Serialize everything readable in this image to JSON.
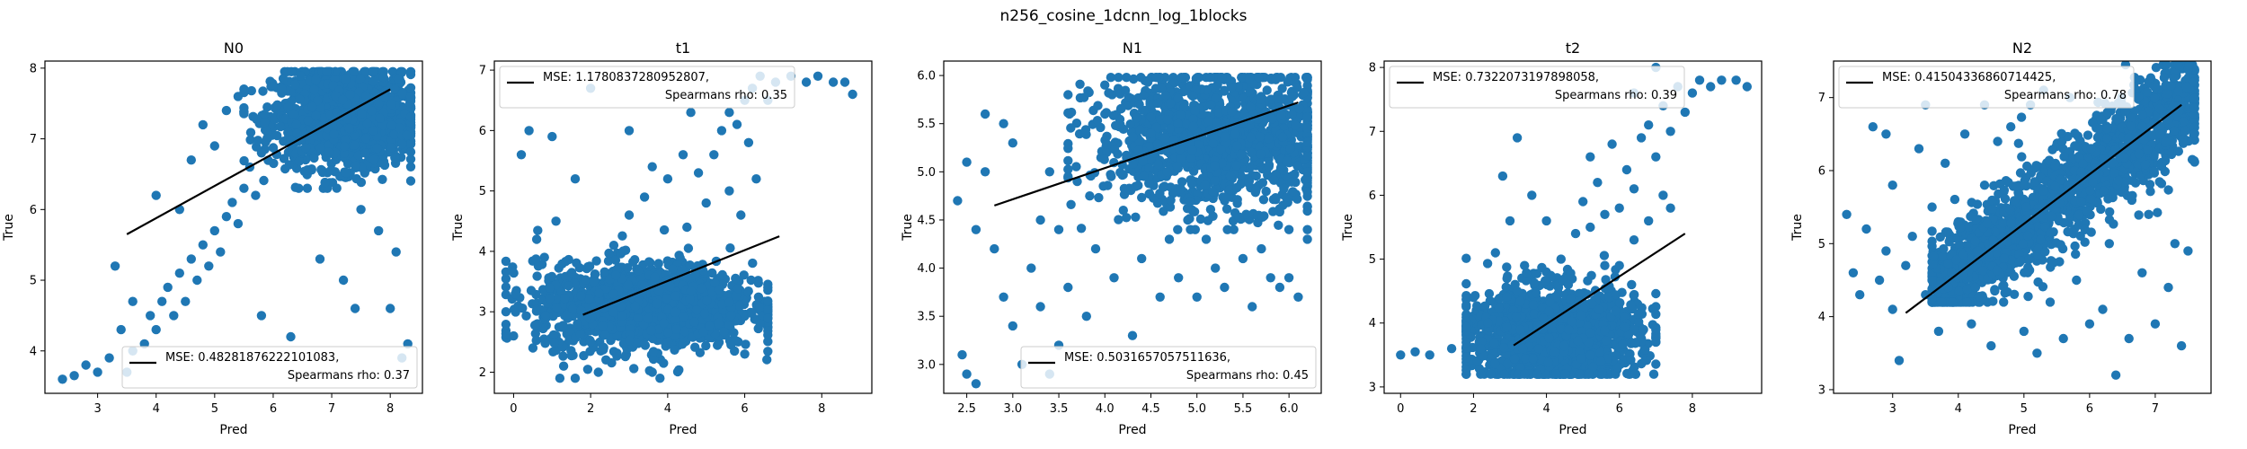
{
  "figure_title": "n256_cosine_1dcnn_log_1blocks",
  "accent_color": "#1f77b4",
  "fit_line_color": "#000000",
  "chart_data": [
    {
      "type": "scatter",
      "title": "N0",
      "xlabel": "Pred",
      "ylabel": "True",
      "xlim": [
        2.1,
        8.55
      ],
      "ylim": [
        3.4,
        8.1
      ],
      "xticks": [
        3,
        4,
        5,
        6,
        7,
        8
      ],
      "yticks": [
        4,
        5,
        6,
        7,
        8
      ],
      "legend": {
        "line1": "MSE: 0.48281876222101083,",
        "line2": "Spearmans rho: 0.37",
        "loc": "lower-right"
      },
      "fit_line": [
        [
          3.5,
          5.65
        ],
        [
          8.0,
          7.7
        ]
      ],
      "points": [
        [
          2.4,
          3.6
        ],
        [
          2.6,
          3.65
        ],
        [
          2.8,
          3.8
        ],
        [
          3.0,
          3.7
        ],
        [
          3.2,
          3.9
        ],
        [
          3.4,
          4.3
        ],
        [
          3.5,
          3.7
        ],
        [
          3.6,
          4.0
        ],
        [
          3.8,
          4.1
        ],
        [
          3.9,
          4.5
        ],
        [
          4.0,
          4.3
        ],
        [
          4.1,
          4.7
        ],
        [
          4.2,
          4.9
        ],
        [
          4.3,
          4.5
        ],
        [
          4.4,
          5.1
        ],
        [
          4.5,
          4.7
        ],
        [
          4.6,
          5.3
        ],
        [
          4.7,
          5.0
        ],
        [
          4.8,
          5.5
        ],
        [
          4.9,
          5.2
        ],
        [
          5.0,
          5.7
        ],
        [
          5.1,
          5.4
        ],
        [
          5.2,
          5.9
        ],
        [
          5.3,
          6.1
        ],
        [
          5.4,
          5.8
        ],
        [
          5.5,
          6.3
        ],
        [
          5.6,
          6.6
        ],
        [
          5.7,
          6.2
        ],
        [
          5.8,
          6.8
        ],
        [
          5.9,
          7.0
        ],
        [
          3.3,
          5.2
        ],
        [
          4.0,
          6.2
        ],
        [
          4.6,
          6.7
        ],
        [
          4.8,
          7.2
        ],
        [
          5.2,
          7.4
        ],
        [
          5.4,
          7.6
        ],
        [
          5.0,
          6.9
        ],
        [
          4.4,
          6.0
        ],
        [
          3.6,
          4.7
        ],
        [
          5.8,
          4.5
        ],
        [
          6.3,
          4.2
        ],
        [
          7.2,
          5.0
        ],
        [
          7.4,
          4.6
        ],
        [
          8.0,
          4.6
        ],
        [
          8.2,
          3.9
        ],
        [
          8.3,
          4.1
        ],
        [
          8.1,
          5.4
        ],
        [
          7.8,
          5.7
        ],
        [
          7.5,
          6.0
        ],
        [
          6.8,
          5.3
        ]
      ],
      "cluster": {
        "cx": 7.2,
        "cy": 7.3,
        "sx": 0.6,
        "sy": 0.35,
        "n": 1400,
        "xmin": 5.5,
        "xmax": 8.35,
        "ymin": 6.3,
        "ymax": 7.95
      }
    },
    {
      "type": "scatter",
      "title": "t1",
      "xlabel": "Pred",
      "ylabel": "True",
      "xlim": [
        -0.5,
        9.3
      ],
      "ylim": [
        1.65,
        7.15
      ],
      "xticks": [
        0,
        2,
        4,
        6,
        8
      ],
      "yticks": [
        2,
        3,
        4,
        5,
        6,
        7
      ],
      "legend": {
        "line1": "MSE: 1.1780837280952807,",
        "line2": "Spearmans rho: 0.35",
        "loc": "upper-left"
      },
      "fit_line": [
        [
          1.8,
          2.95
        ],
        [
          6.9,
          4.25
        ]
      ],
      "points": [
        [
          -0.2,
          3.0
        ],
        [
          0.0,
          2.6
        ],
        [
          0.2,
          5.6
        ],
        [
          0.4,
          6.0
        ],
        [
          0.6,
          4.2
        ],
        [
          0.5,
          2.4
        ],
        [
          1.0,
          5.9
        ],
        [
          1.1,
          4.5
        ],
        [
          1.3,
          2.1
        ],
        [
          1.6,
          1.9
        ],
        [
          2.0,
          2.5
        ],
        [
          2.2,
          2.0
        ],
        [
          2.6,
          4.1
        ],
        [
          3.0,
          4.6
        ],
        [
          3.4,
          4.9
        ],
        [
          3.6,
          5.4
        ],
        [
          4.0,
          5.2
        ],
        [
          4.4,
          5.6
        ],
        [
          4.8,
          5.3
        ],
        [
          5.2,
          5.6
        ],
        [
          5.4,
          6.0
        ],
        [
          5.6,
          6.3
        ],
        [
          5.8,
          6.1
        ],
        [
          6.0,
          6.5
        ],
        [
          6.2,
          6.7
        ],
        [
          6.4,
          6.9
        ],
        [
          6.6,
          6.5
        ],
        [
          6.8,
          6.8
        ],
        [
          7.2,
          6.9
        ],
        [
          7.6,
          6.8
        ],
        [
          7.9,
          6.9
        ],
        [
          8.3,
          6.8
        ],
        [
          8.6,
          6.8
        ],
        [
          8.8,
          6.6
        ],
        [
          5.0,
          4.8
        ],
        [
          5.6,
          5.0
        ],
        [
          6.1,
          5.8
        ],
        [
          4.5,
          4.4
        ],
        [
          6.0,
          2.3
        ],
        [
          6.4,
          2.8
        ],
        [
          3.0,
          6.0
        ],
        [
          3.6,
          2.0
        ],
        [
          2.0,
          6.7
        ],
        [
          1.6,
          5.2
        ],
        [
          4.6,
          6.3
        ],
        [
          5.9,
          4.6
        ],
        [
          6.3,
          5.2
        ],
        [
          3.8,
          1.9
        ],
        [
          1.2,
          1.9
        ],
        [
          0.8,
          3.9
        ]
      ],
      "cluster": {
        "cx": 3.4,
        "cy": 3.1,
        "sx": 1.4,
        "sy": 0.35,
        "n": 1500,
        "xmin": -0.2,
        "xmax": 6.6,
        "ymin": 2.0,
        "ymax": 4.5
      }
    },
    {
      "type": "scatter",
      "title": "N1",
      "xlabel": "Pred",
      "ylabel": "True",
      "xlim": [
        2.25,
        6.35
      ],
      "ylim": [
        2.7,
        6.15
      ],
      "xticks": [
        2.5,
        3.0,
        3.5,
        4.0,
        4.5,
        5.0,
        5.5,
        6.0
      ],
      "yticks": [
        3.0,
        3.5,
        4.0,
        4.5,
        5.0,
        5.5,
        6.0
      ],
      "legend": {
        "line1": "MSE: 0.5031657057511636,",
        "line2": "Spearmans rho: 0.45",
        "loc": "lower-right"
      },
      "fit_line": [
        [
          2.8,
          4.65
        ],
        [
          6.1,
          5.72
        ]
      ],
      "points": [
        [
          2.4,
          4.7
        ],
        [
          2.5,
          5.1
        ],
        [
          2.5,
          2.9
        ],
        [
          2.6,
          2.8
        ],
        [
          2.6,
          4.4
        ],
        [
          2.7,
          5.6
        ],
        [
          2.8,
          4.2
        ],
        [
          2.9,
          3.7
        ],
        [
          3.0,
          3.4
        ],
        [
          3.0,
          5.3
        ],
        [
          3.1,
          3.0
        ],
        [
          3.2,
          4.0
        ],
        [
          3.3,
          3.6
        ],
        [
          3.4,
          5.0
        ],
        [
          3.4,
          2.9
        ],
        [
          3.5,
          4.4
        ],
        [
          3.6,
          3.8
        ],
        [
          3.7,
          4.9
        ],
        [
          3.8,
          3.5
        ],
        [
          3.9,
          4.2
        ],
        [
          4.0,
          5.6
        ],
        [
          4.1,
          3.9
        ],
        [
          4.2,
          4.6
        ],
        [
          4.3,
          3.3
        ],
        [
          4.4,
          4.1
        ],
        [
          4.5,
          5.4
        ],
        [
          4.6,
          3.7
        ],
        [
          4.7,
          4.3
        ],
        [
          4.8,
          3.9
        ],
        [
          4.9,
          4.5
        ],
        [
          5.0,
          3.7
        ],
        [
          5.1,
          4.3
        ],
        [
          5.2,
          4.0
        ],
        [
          5.3,
          3.8
        ],
        [
          5.4,
          4.4
        ],
        [
          5.5,
          4.1
        ],
        [
          5.6,
          3.6
        ],
        [
          5.7,
          4.2
        ],
        [
          5.8,
          3.9
        ],
        [
          5.9,
          3.8
        ],
        [
          6.0,
          4.4
        ],
        [
          6.1,
          3.7
        ],
        [
          6.2,
          4.3
        ],
        [
          6.0,
          3.9
        ],
        [
          2.7,
          5.0
        ],
        [
          3.6,
          5.8
        ],
        [
          2.9,
          5.5
        ],
        [
          3.3,
          4.5
        ],
        [
          2.45,
          3.1
        ],
        [
          3.5,
          3.2
        ]
      ],
      "cluster": {
        "cx": 5.2,
        "cy": 5.35,
        "sx": 0.65,
        "sy": 0.35,
        "n": 1400,
        "xmin": 3.6,
        "xmax": 6.2,
        "ymin": 4.4,
        "ymax": 5.98
      }
    },
    {
      "type": "scatter",
      "title": "t2",
      "xlabel": "Pred",
      "ylabel": "True",
      "xlim": [
        -0.45,
        9.9
      ],
      "ylim": [
        2.9,
        8.1
      ],
      "xticks": [
        0,
        2,
        4,
        6,
        8
      ],
      "yticks": [
        3,
        4,
        5,
        6,
        7,
        8
      ],
      "legend": {
        "line1": "MSE: 0.7322073197898058,",
        "line2": "Spearmans rho: 0.39",
        "loc": "upper-left"
      },
      "fit_line": [
        [
          3.1,
          3.65
        ],
        [
          7.8,
          5.4
        ]
      ],
      "points": [
        [
          0.0,
          3.5
        ],
        [
          0.4,
          3.55
        ],
        [
          0.8,
          3.5
        ],
        [
          1.4,
          3.6
        ],
        [
          1.8,
          3.7
        ],
        [
          2.0,
          4.4
        ],
        [
          2.4,
          4.0
        ],
        [
          2.6,
          5.1
        ],
        [
          2.8,
          6.3
        ],
        [
          3.0,
          5.6
        ],
        [
          3.2,
          6.9
        ],
        [
          3.4,
          4.9
        ],
        [
          3.6,
          6.0
        ],
        [
          4.0,
          5.6
        ],
        [
          4.4,
          5.0
        ],
        [
          4.8,
          5.4
        ],
        [
          5.0,
          5.9
        ],
        [
          5.2,
          5.5
        ],
        [
          5.4,
          6.2
        ],
        [
          5.6,
          4.9
        ],
        [
          5.8,
          6.8
        ],
        [
          6.0,
          5.8
        ],
        [
          6.2,
          6.4
        ],
        [
          6.4,
          6.1
        ],
        [
          6.6,
          6.9
        ],
        [
          6.8,
          7.1
        ],
        [
          7.0,
          6.6
        ],
        [
          7.2,
          7.4
        ],
        [
          7.4,
          7.0
        ],
        [
          7.6,
          7.7
        ],
        [
          7.8,
          7.3
        ],
        [
          8.0,
          7.6
        ],
        [
          8.2,
          7.8
        ],
        [
          8.5,
          7.7
        ],
        [
          8.8,
          7.8
        ],
        [
          9.2,
          7.8
        ],
        [
          9.5,
          7.7
        ],
        [
          6.0,
          4.9
        ],
        [
          6.4,
          5.3
        ],
        [
          6.8,
          5.6
        ],
        [
          7.2,
          6.0
        ],
        [
          7.4,
          5.8
        ],
        [
          5.6,
          5.7
        ],
        [
          4.6,
          4.6
        ],
        [
          3.9,
          3.9
        ],
        [
          2.2,
          3.6
        ],
        [
          3.2,
          4.5
        ],
        [
          6.4,
          7.6
        ],
        [
          7.0,
          8.0
        ],
        [
          5.2,
          6.6
        ]
      ],
      "cluster": {
        "cx": 4.2,
        "cy": 3.8,
        "sx": 1.15,
        "sy": 0.38,
        "n": 1600,
        "xmin": 1.8,
        "xmax": 7.0,
        "ymin": 3.2,
        "ymax": 5.2
      }
    },
    {
      "type": "scatter",
      "title": "N2",
      "xlabel": "Pred",
      "ylabel": "True",
      "xlim": [
        2.1,
        7.85
      ],
      "ylim": [
        2.95,
        7.5
      ],
      "xticks": [
        3,
        4,
        5,
        6,
        7
      ],
      "yticks": [
        3,
        4,
        5,
        6,
        7
      ],
      "legend": {
        "line1": "MSE: 0.41504336860714425,",
        "line2": "Spearmans rho: 0.78",
        "loc": "upper-left"
      },
      "fit_line": [
        [
          3.2,
          4.05
        ],
        [
          7.4,
          6.9
        ]
      ],
      "points": [
        [
          2.3,
          5.4
        ],
        [
          2.4,
          4.6
        ],
        [
          2.5,
          4.3
        ],
        [
          2.6,
          5.2
        ],
        [
          2.7,
          6.6
        ],
        [
          2.8,
          4.5
        ],
        [
          2.9,
          6.5
        ],
        [
          3.0,
          4.1
        ],
        [
          3.0,
          5.8
        ],
        [
          3.1,
          3.4
        ],
        [
          3.2,
          4.7
        ],
        [
          3.3,
          5.1
        ],
        [
          3.4,
          6.3
        ],
        [
          3.5,
          4.3
        ],
        [
          3.6,
          5.5
        ],
        [
          3.7,
          3.8
        ],
        [
          3.8,
          6.1
        ],
        [
          3.9,
          4.6
        ],
        [
          4.0,
          5.3
        ],
        [
          4.1,
          6.5
        ],
        [
          4.2,
          3.9
        ],
        [
          4.3,
          4.9
        ],
        [
          4.4,
          5.8
        ],
        [
          4.5,
          3.6
        ],
        [
          4.6,
          6.4
        ],
        [
          4.7,
          4.8
        ],
        [
          4.8,
          6.6
        ],
        [
          5.0,
          3.8
        ],
        [
          5.2,
          3.5
        ],
        [
          5.4,
          4.2
        ],
        [
          5.6,
          3.7
        ],
        [
          5.8,
          4.5
        ],
        [
          6.0,
          3.9
        ],
        [
          6.2,
          4.1
        ],
        [
          6.4,
          3.2
        ],
        [
          6.6,
          3.7
        ],
        [
          6.8,
          4.6
        ],
        [
          7.0,
          3.9
        ],
        [
          7.2,
          4.4
        ],
        [
          7.4,
          3.6
        ],
        [
          7.5,
          4.9
        ],
        [
          5.1,
          6.9
        ],
        [
          5.3,
          7.1
        ],
        [
          5.7,
          7.0
        ],
        [
          6.3,
          5.0
        ],
        [
          6.9,
          5.4
        ],
        [
          7.3,
          5.0
        ],
        [
          4.4,
          6.9
        ],
        [
          3.5,
          6.9
        ],
        [
          2.9,
          4.9
        ]
      ],
      "cluster": {
        "cx": 6.0,
        "cy": 5.9,
        "sx": 0.9,
        "sy": 0.6,
        "n": 1500,
        "xmin": 3.6,
        "xmax": 7.6,
        "ymin": 4.2,
        "ymax": 7.45,
        "band": true
      }
    }
  ]
}
